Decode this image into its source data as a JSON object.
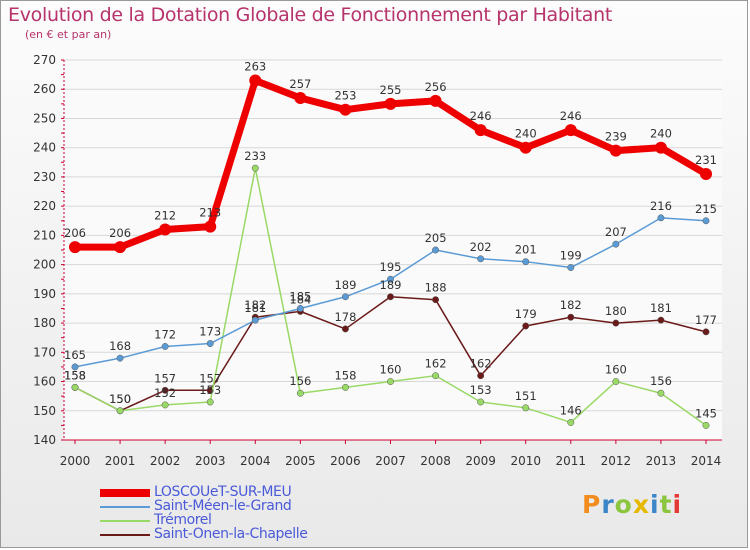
{
  "title": "Evolution de la Dotation Globale de Fonctionnement par Habitant",
  "subtitle": "(en € et par an)",
  "logo": {
    "text": "Proxiti",
    "colors": [
      "#f28c1e",
      "#3a86c8",
      "#8cc63f",
      "#e6b800",
      "#3a86c8",
      "#8cc63f",
      "#e53935"
    ]
  },
  "chart_data": {
    "type": "line",
    "title": "Evolution de la Dotation Globale de Fonctionnement par Habitant",
    "subtitle": "(en € et par an)",
    "x": [
      "2000",
      "2001",
      "2002",
      "2003",
      "2004",
      "2005",
      "2006",
      "2007",
      "2008",
      "2009",
      "2010",
      "2011",
      "2012",
      "2013",
      "2014"
    ],
    "ylim": [
      140,
      270
    ],
    "yticks": [
      140,
      150,
      160,
      170,
      180,
      190,
      200,
      210,
      220,
      230,
      240,
      250,
      260,
      270
    ],
    "grid": "horizontal",
    "legend_position": "bottom-left",
    "series": [
      {
        "name": "LOSCOUeT-SUR-MEU",
        "color": "#ee0000",
        "values": [
          206,
          206,
          212,
          213,
          263,
          257,
          253,
          255,
          256,
          246,
          240,
          246,
          239,
          240,
          231
        ]
      },
      {
        "name": "Saint-Méen-le-Grand",
        "color": "#5b9bd5",
        "values": [
          165,
          168,
          172,
          173,
          181,
          185,
          189,
          195,
          205,
          202,
          201,
          199,
          207,
          216,
          215
        ]
      },
      {
        "name": "Trémorel",
        "color": "#99d966",
        "values": [
          158,
          150,
          152,
          153,
          233,
          156,
          158,
          160,
          162,
          153,
          151,
          146,
          160,
          156,
          145
        ]
      },
      {
        "name": "Saint-Onen-la-Chapelle",
        "color": "#6b1a1a",
        "values": [
          158,
          150,
          157,
          157,
          182,
          184,
          178,
          189,
          188,
          162,
          179,
          182,
          180,
          181,
          177
        ]
      }
    ]
  }
}
